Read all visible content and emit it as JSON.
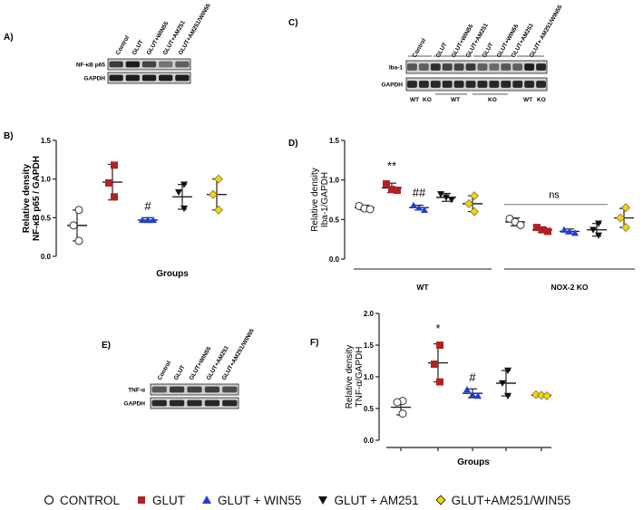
{
  "panels": {
    "A": "A)",
    "B": "B)",
    "C": "C)",
    "D": "D)",
    "E": "E)",
    "F": "F)"
  },
  "blot_a": {
    "lanes": [
      "Control",
      "GLUT",
      "GLUT+WIN55",
      "GLUT+AM251",
      "GLUT+AM251/WIN55"
    ],
    "rows": [
      "NF-κB p65",
      "GAPDH"
    ],
    "band_intensity": [
      [
        0.75,
        0.9,
        0.7,
        0.45,
        0.55
      ],
      [
        0.9,
        0.9,
        0.9,
        0.9,
        0.9
      ]
    ]
  },
  "blot_c": {
    "lanes": [
      "Control",
      "GLUT",
      "GLUT+WIN55",
      "GLUT+AM251",
      "GLUT",
      "GLUT+WIN55",
      "GLUT+AM251",
      "GLUT+ AM251/WIN55"
    ],
    "rows": [
      "Iba-1",
      "GAPDH"
    ],
    "bottom_labels": [
      "WT",
      "KO",
      "WT",
      "KO",
      "WT",
      "KO"
    ]
  },
  "blot_e": {
    "lanes": [
      "Control",
      "GLUT",
      "GLUT+WIN55",
      "GLUT+AM251",
      "GLUT+AM251/WIN55"
    ],
    "rows": [
      "TNF-α",
      "GAPDH"
    ]
  },
  "colors": {
    "control": "#ffffff",
    "glut": "#b22222",
    "win55": "#1f3fd6",
    "am251": "#111111",
    "am251_win55": "#f2d400"
  },
  "chart_data": [
    {
      "id": "B",
      "type": "scatter",
      "ylabel": "Relative density",
      "ylabel2": "NF-κB p65 / GAPDH",
      "xlabel": "Groups",
      "ylim": [
        0,
        1.5
      ],
      "yticks": [
        "0.0",
        "0.5",
        "1.0",
        "1.5"
      ],
      "groups": [
        {
          "key": "control",
          "mean": 0.4,
          "sd": 0.2,
          "points": [
            0.6,
            0.4,
            0.2
          ]
        },
        {
          "key": "glut",
          "mean": 0.96,
          "sd": 0.23,
          "points": [
            1.18,
            0.95,
            0.77
          ]
        },
        {
          "key": "win55",
          "mean": 0.47,
          "sd": 0.03,
          "points": [
            0.47,
            0.47,
            0.47
          ]
        },
        {
          "key": "am251",
          "mean": 0.77,
          "sd": 0.16,
          "points": [
            0.93,
            0.83,
            0.62
          ]
        },
        {
          "key": "am251_win55",
          "mean": 0.8,
          "sd": 0.2,
          "points": [
            1.0,
            0.8,
            0.6
          ]
        }
      ],
      "annotations": [
        {
          "group": 2,
          "text": "#",
          "y": 0.6
        }
      ]
    },
    {
      "id": "D",
      "type": "scatter",
      "ylabel": "Relative density",
      "ylabel2": "Iba-1/GAPDH",
      "ylim": [
        0,
        1.5
      ],
      "yticks": [
        "0.0",
        "0.5",
        "1.0",
        "1.5"
      ],
      "group_labels": [
        "WT",
        "NOX-2 KO"
      ],
      "groups": [
        {
          "key": "control",
          "mean": 0.65,
          "sd": 0.03,
          "points": [
            0.67,
            0.64,
            0.63
          ]
        },
        {
          "key": "glut",
          "mean": 0.9,
          "sd": 0.06,
          "points": [
            0.95,
            0.88,
            0.87
          ]
        },
        {
          "key": "win55",
          "mean": 0.65,
          "sd": 0.03,
          "points": [
            0.68,
            0.65,
            0.62
          ]
        },
        {
          "key": "am251",
          "mean": 0.78,
          "sd": 0.05,
          "points": [
            0.82,
            0.78,
            0.75
          ]
        },
        {
          "key": "am251_win55",
          "mean": 0.7,
          "sd": 0.1,
          "points": [
            0.8,
            0.7,
            0.6
          ]
        },
        {
          "key": "control",
          "mean": 0.47,
          "sd": 0.05,
          "points": [
            0.51,
            0.47,
            0.43
          ]
        },
        {
          "key": "glut",
          "mean": 0.37,
          "sd": 0.03,
          "points": [
            0.4,
            0.37,
            0.35
          ]
        },
        {
          "key": "win55",
          "mean": 0.35,
          "sd": 0.03,
          "points": [
            0.37,
            0.35,
            0.33
          ]
        },
        {
          "key": "am251",
          "mean": 0.37,
          "sd": 0.08,
          "points": [
            0.45,
            0.37,
            0.3
          ]
        },
        {
          "key": "am251_win55",
          "mean": 0.52,
          "sd": 0.12,
          "points": [
            0.65,
            0.52,
            0.4
          ]
        }
      ],
      "annotations": [
        {
          "group": 1,
          "text": "**",
          "y": 1.13
        },
        {
          "group": 2,
          "text": "##",
          "y": 0.79
        }
      ],
      "ns_text": "ns"
    },
    {
      "id": "F",
      "type": "scatter",
      "ylabel": "Relative density",
      "ylabel2": "TNF-α/GAPDH",
      "xlabel": "Groups",
      "ylim": [
        0,
        2.0
      ],
      "yticks": [
        "0.0",
        "0.5",
        "1.0",
        "1.5",
        "2.0"
      ],
      "groups": [
        {
          "key": "control",
          "mean": 0.52,
          "sd": 0.12,
          "points": [
            0.62,
            0.6,
            0.42
          ]
        },
        {
          "key": "glut",
          "mean": 1.22,
          "sd": 0.3,
          "points": [
            1.5,
            1.2,
            0.92
          ]
        },
        {
          "key": "win55",
          "mean": 0.74,
          "sd": 0.07,
          "points": [
            0.8,
            0.72,
            0.7
          ]
        },
        {
          "key": "am251",
          "mean": 0.9,
          "sd": 0.2,
          "points": [
            1.1,
            0.9,
            0.7
          ]
        },
        {
          "key": "am251_win55",
          "mean": 0.71,
          "sd": 0.02,
          "points": [
            0.72,
            0.71,
            0.7
          ]
        }
      ],
      "annotations": [
        {
          "group": 1,
          "text": "*",
          "y": 1.7
        },
        {
          "group": 2,
          "text": "#",
          "y": 0.93
        }
      ]
    }
  ],
  "legend": [
    {
      "key": "control",
      "label": "CONTROL"
    },
    {
      "key": "glut",
      "label": "GLUT"
    },
    {
      "key": "win55",
      "label": "GLUT + WIN55"
    },
    {
      "key": "am251",
      "label": "GLUT + AM251"
    },
    {
      "key": "am251_win55",
      "label": "GLUT+AM251/WIN55"
    }
  ]
}
